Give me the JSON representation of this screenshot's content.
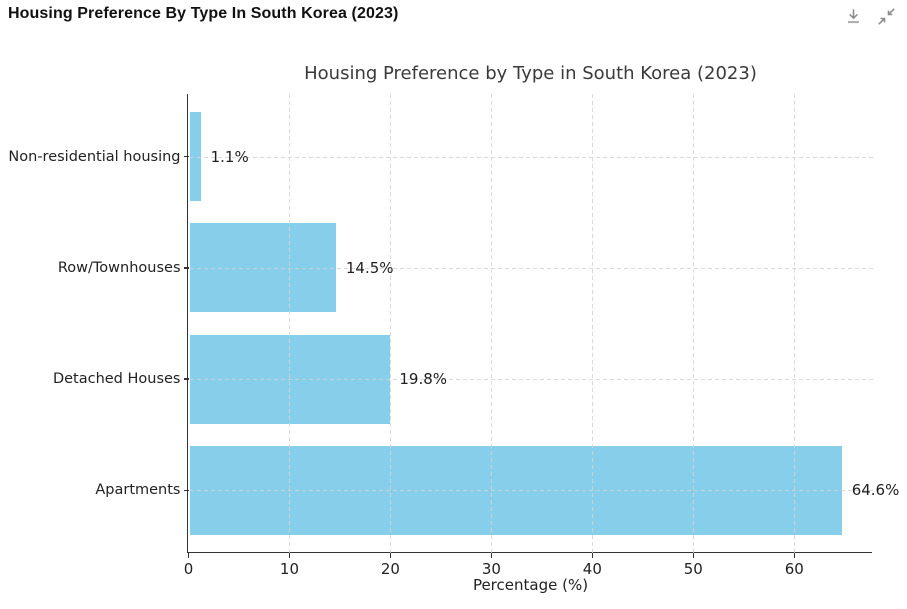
{
  "header": {
    "title": "Housing Preference By Type In South Korea (2023)",
    "icons": [
      {
        "name": "download-icon"
      },
      {
        "name": "collapse-icon"
      }
    ],
    "icon_color": "#8c8c8c"
  },
  "chart_data": {
    "type": "bar",
    "orientation": "horizontal",
    "title": "Housing Preference by Type in South Korea (2023)",
    "categories": [
      "Non-residential housing",
      "Row/Townhouses",
      "Detached Houses",
      "Apartments"
    ],
    "values": [
      1.1,
      14.5,
      19.8,
      64.6
    ],
    "value_labels": [
      "1.1%",
      "14.5%",
      "19.8%",
      "64.6%"
    ],
    "xlabel": "Percentage (%)",
    "ylabel": "",
    "xlim": [
      0,
      67.8
    ],
    "xticks": [
      0,
      10,
      20,
      30,
      40,
      50,
      60
    ],
    "grid": true,
    "grid_style": "dashed",
    "legend": false,
    "bar_color": "#87CEEB",
    "text_color": "#222222",
    "title_color": "#3a3a3a",
    "axis_color": "#333333",
    "grid_color": "#d4d4d4"
  }
}
